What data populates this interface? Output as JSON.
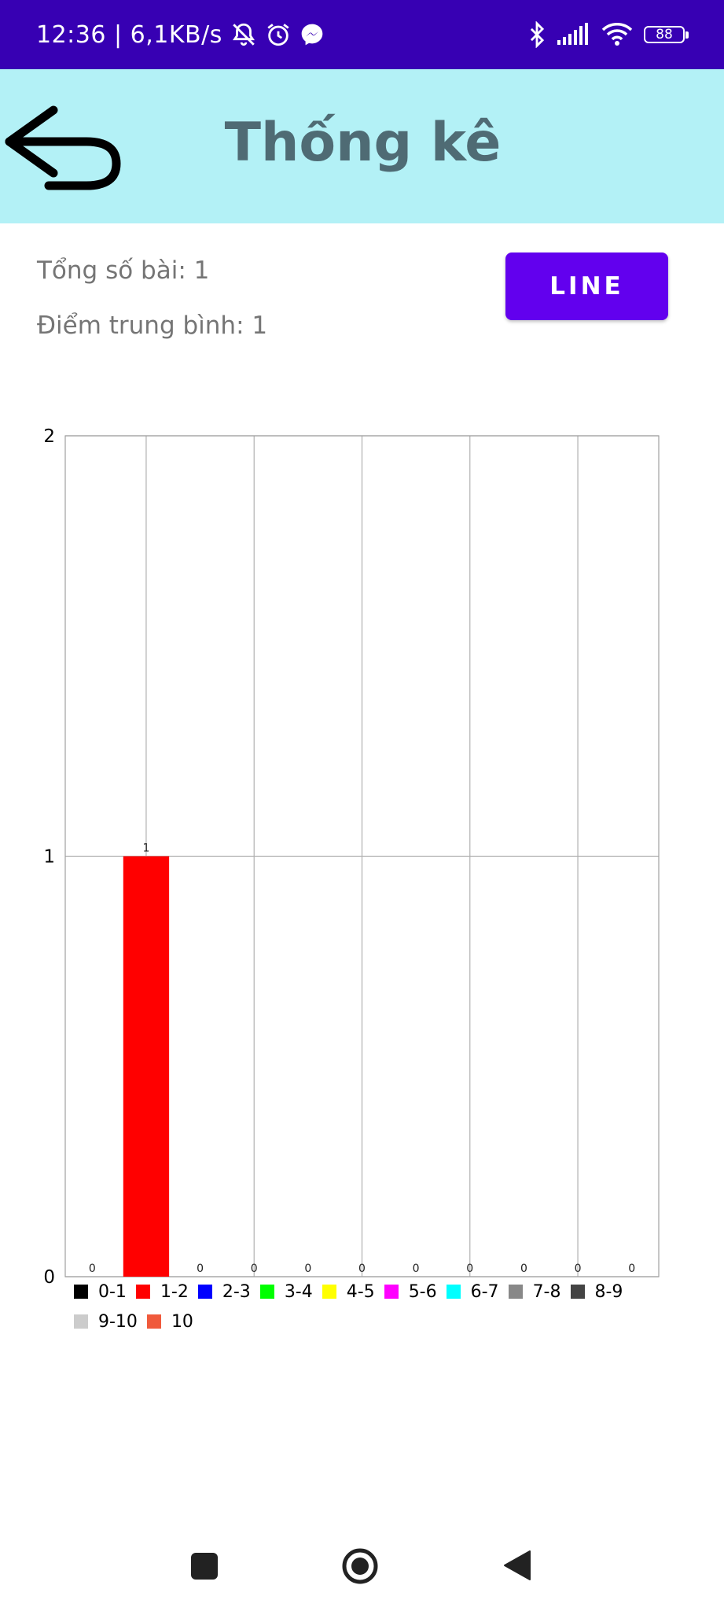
{
  "status_bar": {
    "time_speed": "12:36 | 6,1KB/s",
    "battery": "88",
    "icons": [
      "muted-bell-icon",
      "alarm-icon",
      "messenger-icon",
      "bluetooth-icon",
      "signal-icon",
      "wifi-icon",
      "battery-icon"
    ]
  },
  "header": {
    "title": "Thống kê",
    "back_icon": "back-arrow-icon"
  },
  "summary": {
    "total_label": "Tổng số bài: 1",
    "average_label": "Điểm trung bình: 1"
  },
  "line_button": "LINE",
  "chart_data": {
    "type": "bar",
    "categories": [
      "0-1",
      "1-2",
      "2-3",
      "3-4",
      "4-5",
      "5-6",
      "6-7",
      "7-8",
      "8-9",
      "9-10",
      "10"
    ],
    "values": [
      0,
      1,
      0,
      0,
      0,
      0,
      0,
      0,
      0,
      0,
      0
    ],
    "value_labels": [
      "0",
      "1",
      "0",
      "0",
      "0",
      "0",
      "0",
      "0",
      "0",
      "0",
      "0"
    ],
    "colors": [
      "#000000",
      "#ff0000",
      "#0000ff",
      "#00ff00",
      "#ffff00",
      "#ff00ff",
      "#00ffff",
      "#888888",
      "#444444",
      "#cccccc",
      "#f05a3c"
    ],
    "ylim": [
      0,
      2
    ],
    "yticks": [
      0,
      1,
      2
    ],
    "ytick_labels": [
      "0",
      "1",
      "2"
    ],
    "grid": true,
    "legend_position": "bottom-left",
    "title": "",
    "xlabel": "",
    "ylabel": ""
  },
  "nav_bar": {
    "icons": [
      "recents-square-icon",
      "home-circle-icon",
      "back-triangle-icon"
    ]
  }
}
